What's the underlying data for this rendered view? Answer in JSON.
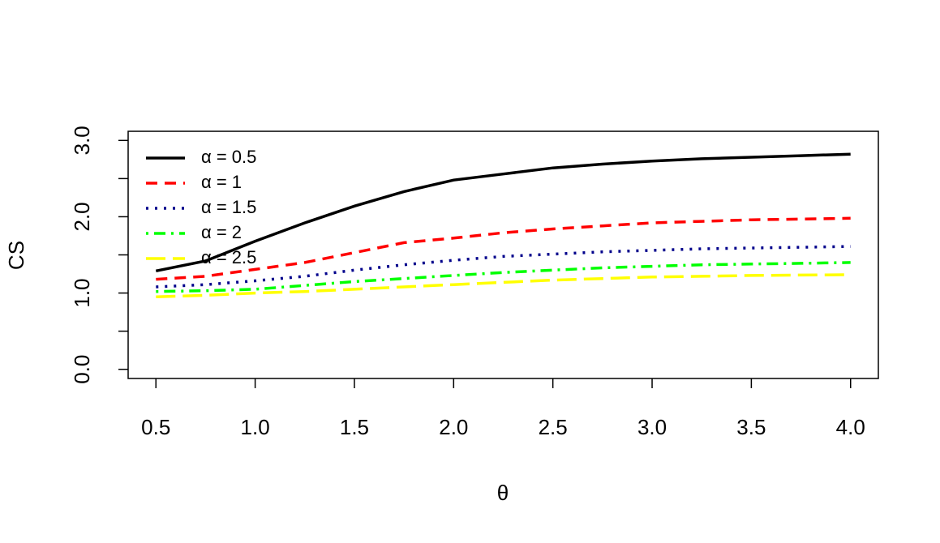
{
  "chart_data": {
    "type": "line",
    "x_label": "θ",
    "y_label": "CS",
    "x": [
      0.5,
      0.75,
      1.0,
      1.25,
      1.5,
      1.75,
      2.0,
      2.25,
      2.5,
      2.75,
      3.0,
      3.25,
      3.5,
      3.75,
      4.0
    ],
    "series": [
      {
        "name": "α = 0.5",
        "color": "#000000",
        "dash": "solid",
        "values": [
          1.29,
          1.42,
          1.68,
          1.92,
          2.14,
          2.33,
          2.48,
          2.56,
          2.64,
          2.69,
          2.73,
          2.76,
          2.78,
          2.8,
          2.82
        ]
      },
      {
        "name": "α = 1",
        "color": "#ff0000",
        "dash": "dashed",
        "values": [
          1.18,
          1.22,
          1.31,
          1.4,
          1.53,
          1.66,
          1.72,
          1.79,
          1.84,
          1.88,
          1.92,
          1.94,
          1.96,
          1.97,
          1.98
        ]
      },
      {
        "name": "α = 1.5",
        "color": "#00008b",
        "dash": "dotted",
        "values": [
          1.08,
          1.11,
          1.16,
          1.22,
          1.3,
          1.37,
          1.43,
          1.48,
          1.51,
          1.54,
          1.56,
          1.58,
          1.59,
          1.6,
          1.61
        ]
      },
      {
        "name": "α = 2",
        "color": "#00ff00",
        "dash": "dotdash",
        "values": [
          1.02,
          1.03,
          1.05,
          1.1,
          1.15,
          1.19,
          1.23,
          1.27,
          1.3,
          1.33,
          1.35,
          1.37,
          1.38,
          1.39,
          1.4
        ]
      },
      {
        "name": "α = 2.5",
        "color": "#ffff00",
        "dash": "longdash",
        "values": [
          0.95,
          0.97,
          1.0,
          1.02,
          1.05,
          1.08,
          1.11,
          1.14,
          1.17,
          1.19,
          1.21,
          1.22,
          1.23,
          1.235,
          1.24
        ]
      }
    ],
    "xlim": [
      0.36,
      4.14
    ],
    "ylim": [
      -0.12,
      3.12
    ],
    "xticks": [
      0.5,
      {
        "value": 1,
        "label": "1.0"
      },
      1.5,
      {
        "value": 2,
        "label": "2.0"
      },
      2.5,
      {
        "value": 3,
        "label": "3.0"
      },
      3.5,
      {
        "value": 4,
        "label": "4.0"
      }
    ],
    "yticks": [
      {
        "value": 0,
        "label": "0.0"
      },
      {
        "value": 1,
        "label": "1.0"
      },
      {
        "value": 2,
        "label": "2.0"
      },
      {
        "value": 3,
        "label": "3.0"
      }
    ],
    "yminor_ticks": [
      0.5,
      1.5,
      2.5
    ],
    "legend": "topleft",
    "grid": false
  }
}
